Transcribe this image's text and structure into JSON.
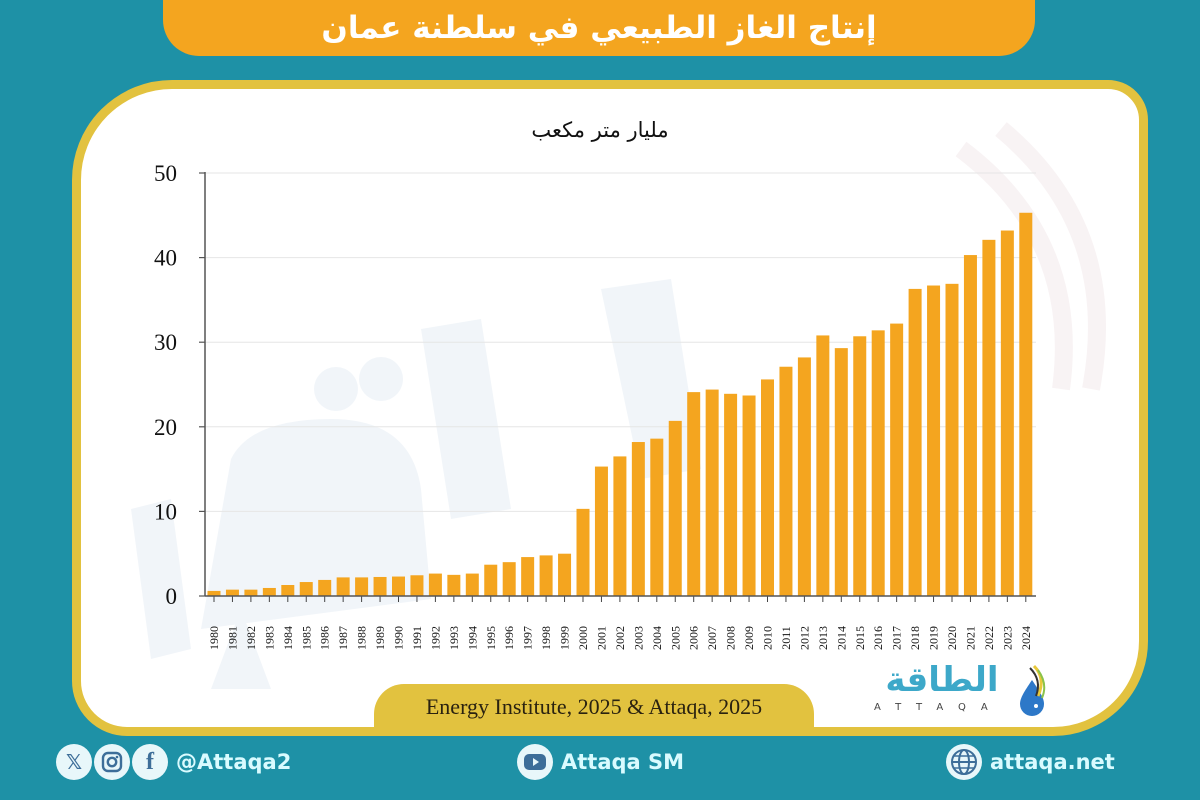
{
  "header": {
    "title": "إنتاج الغاز الطبيعي في سلطنة عمان"
  },
  "chart": {
    "unit_label": "مليار متر مكعب"
  },
  "source": {
    "text": "Energy Institute, 2025 & Attaqa, 2025"
  },
  "logo": {
    "arabic": "الطاقة",
    "english": "ATTAQA"
  },
  "footer": {
    "social_handle": "@Attaqa2",
    "youtube": "Attaqa SM",
    "website": "attaqa.net",
    "icons": [
      "x-icon",
      "instagram-icon",
      "facebook-icon",
      "youtube-icon",
      "globe-icon"
    ]
  },
  "colors": {
    "background": "#1E91A6",
    "banner": "#F4A51F",
    "card_border": "#E2C23F",
    "bar": "#F4A51F",
    "text": "#111111"
  },
  "chart_data": {
    "type": "bar",
    "title": "إنتاج الغاز الطبيعي في سلطنة عمان",
    "subtitle": "مليار متر مكعب",
    "xlabel": "",
    "ylabel": "مليار متر مكعب",
    "ylim": [
      0,
      50
    ],
    "yticks": [
      0,
      10,
      20,
      30,
      40,
      50
    ],
    "grid": true,
    "legend": null,
    "categories": [
      "1980",
      "1981",
      "1982",
      "1983",
      "1984",
      "1985",
      "1986",
      "1987",
      "1988",
      "1989",
      "1990",
      "1991",
      "1992",
      "1993",
      "1994",
      "1995",
      "1996",
      "1997",
      "1998",
      "1999",
      "2000",
      "2001",
      "2002",
      "2003",
      "2004",
      "2005",
      "2006",
      "2007",
      "2008",
      "2009",
      "2010",
      "2011",
      "2012",
      "2013",
      "2014",
      "2015",
      "2016",
      "2017",
      "2018",
      "2019",
      "2020",
      "2021",
      "2022",
      "2023",
      "2024"
    ],
    "values": [
      0.6,
      0.75,
      0.75,
      0.95,
      1.3,
      1.65,
      1.9,
      2.2,
      2.2,
      2.25,
      2.3,
      2.45,
      2.65,
      2.5,
      2.65,
      3.7,
      4.0,
      4.6,
      4.8,
      5.0,
      10.3,
      15.3,
      16.5,
      18.2,
      18.6,
      20.7,
      24.1,
      24.4,
      23.9,
      23.7,
      25.6,
      27.1,
      28.2,
      30.8,
      29.3,
      30.7,
      31.4,
      32.2,
      36.3,
      36.7,
      36.9,
      40.3,
      42.1,
      43.2,
      45.3
    ],
    "source": "Energy Institute, 2025 & Attaqa, 2025"
  }
}
